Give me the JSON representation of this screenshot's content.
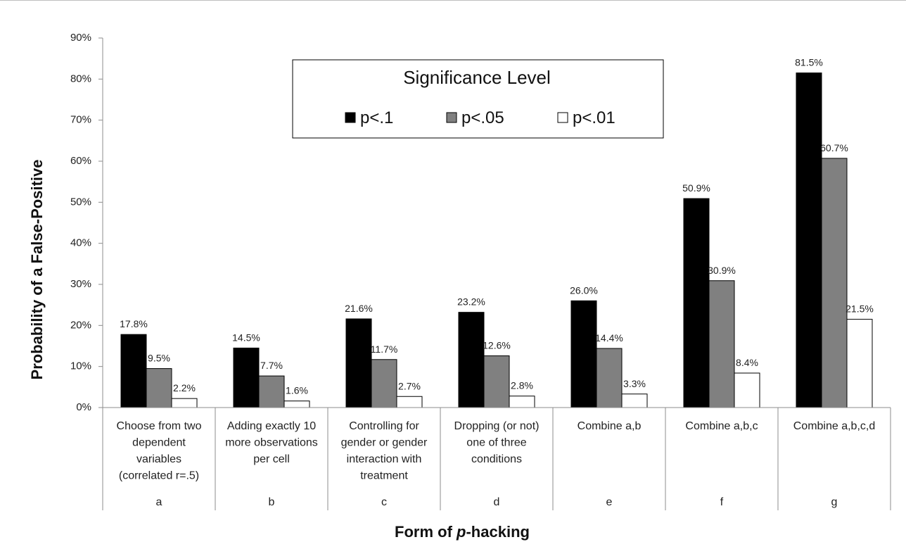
{
  "chart_data": {
    "type": "bar",
    "title": "",
    "xlabel_prefix": "Form of ",
    "xlabel_italic": "p",
    "xlabel_suffix": "-hacking",
    "ylabel": "Probability of a False-Positive",
    "ylim": [
      0,
      90
    ],
    "y_ticks": [
      "0%",
      "10%",
      "20%",
      "30%",
      "40%",
      "50%",
      "60%",
      "70%",
      "80%",
      "90%"
    ],
    "categories": [
      {
        "letter": "a",
        "lines": [
          "Choose from two",
          "dependent",
          "variables",
          "(correlated r=.5)"
        ]
      },
      {
        "letter": "b",
        "lines": [
          "Adding exactly 10",
          "more observations",
          "per cell"
        ]
      },
      {
        "letter": "c",
        "lines": [
          "Controlling for",
          "gender or gender",
          "interaction with",
          "treatment"
        ]
      },
      {
        "letter": "d",
        "lines": [
          "Dropping (or not)",
          "one of three",
          "conditions"
        ]
      },
      {
        "letter": "e",
        "lines": [
          "Combine a,b"
        ]
      },
      {
        "letter": "f",
        "lines": [
          "Combine a,b,c"
        ]
      },
      {
        "letter": "g",
        "lines": [
          "Combine a,b,c,d"
        ]
      }
    ],
    "series": [
      {
        "name": "p<.1",
        "color": "#000000",
        "values": [
          17.8,
          14.5,
          21.6,
          23.2,
          26.0,
          50.9,
          81.5
        ],
        "labels": [
          "17.8%",
          "14.5%",
          "21.6%",
          "23.2%",
          "26.0%",
          "50.9%",
          "81.5%"
        ]
      },
      {
        "name": "p<.05",
        "color": "#808080",
        "values": [
          9.5,
          7.7,
          11.7,
          12.6,
          14.4,
          30.9,
          60.7
        ],
        "labels": [
          "9.5%",
          "7.7%",
          "11.7%",
          "12.6%",
          "14.4%",
          "30.9%",
          "60.7%"
        ]
      },
      {
        "name": "p<.01",
        "color": "#ffffff",
        "values": [
          2.2,
          1.6,
          2.7,
          2.8,
          3.3,
          8.4,
          21.5
        ],
        "labels": [
          "2.2%",
          "1.6%",
          "2.7%",
          "2.8%",
          "3.3%",
          "8.4%",
          "21.5%"
        ]
      }
    ],
    "legend": {
      "title": "Significance Level",
      "position": "top-center"
    }
  }
}
